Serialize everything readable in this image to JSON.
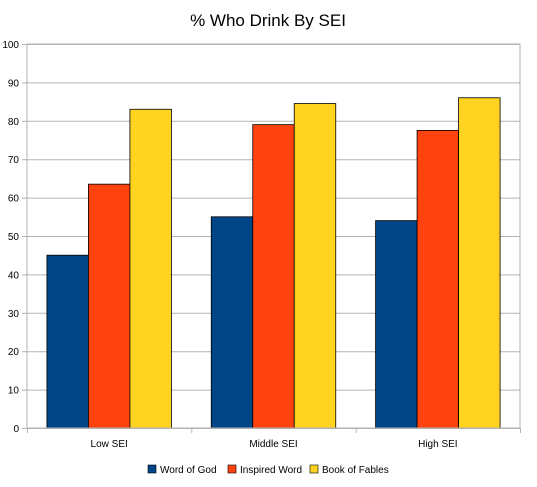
{
  "chart_data": {
    "type": "bar",
    "title": "% Who Drink By SEI",
    "categories": [
      "Low SEI",
      "Middle SEI",
      "High SEI"
    ],
    "series": [
      {
        "name": "Word of God",
        "color": "#004586",
        "values": [
          45,
          55,
          54
        ]
      },
      {
        "name": "Inspired Word",
        "color": "#ff420e",
        "values": [
          63.5,
          79,
          77.5
        ]
      },
      {
        "name": "Book of Fables",
        "color": "#ffd320",
        "values": [
          83,
          84.5,
          86
        ]
      }
    ],
    "ylim": [
      0,
      100
    ],
    "yticks": [
      0,
      10,
      20,
      30,
      40,
      50,
      60,
      70,
      80,
      90,
      100
    ],
    "grid": true,
    "legend_position": "bottom"
  }
}
